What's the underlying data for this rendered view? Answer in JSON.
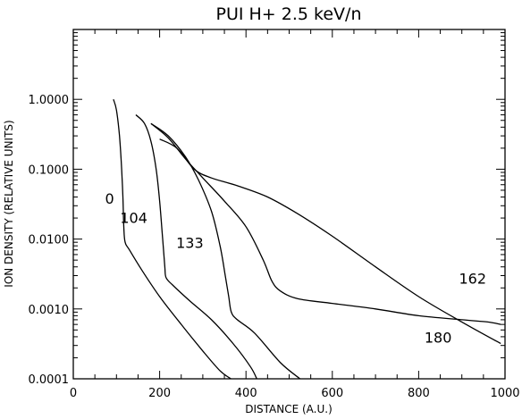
{
  "chart_data": {
    "type": "line",
    "title": "PUI H+ 2.5 keV/n",
    "xlabel": "DISTANCE (A.U.)",
    "ylabel": "ION DENSITY (RELATIVE UNITS)",
    "xlim": [
      0,
      1000
    ],
    "ylim": [
      0.0001,
      10
    ],
    "yscale": "log",
    "xticks": [
      0,
      200,
      400,
      600,
      800,
      1000
    ],
    "xtick_labels": [
      "0",
      "200",
      "400",
      "600",
      "800",
      "1000"
    ],
    "yticks": [
      0.0001,
      0.001,
      0.01,
      0.1,
      1.0
    ],
    "ytick_labels": [
      "0.0001",
      "0.0010",
      "0.0100",
      "0.1000",
      "1.0000"
    ],
    "series": [
      {
        "name": "0",
        "x": [
          93,
          100,
          107,
          112,
          115,
          117,
          120,
          130,
          160,
          200,
          250,
          300,
          340,
          365
        ],
        "y": [
          1.0,
          0.7,
          0.3,
          0.1,
          0.04,
          0.015,
          0.009,
          0.007,
          0.0035,
          0.0015,
          0.0006,
          0.00025,
          0.00013,
          0.0001
        ]
      },
      {
        "name": "104",
        "x": [
          145,
          165,
          180,
          192,
          200,
          207,
          212,
          215,
          230,
          270,
          320,
          370,
          410,
          425
        ],
        "y": [
          0.6,
          0.45,
          0.25,
          0.1,
          0.035,
          0.01,
          0.004,
          0.0028,
          0.0022,
          0.0013,
          0.0007,
          0.00032,
          0.00015,
          0.0001
        ]
      },
      {
        "name": "133",
        "x": [
          180,
          220,
          260,
          290,
          320,
          340,
          352,
          360,
          366,
          380,
          420,
          480,
          525
        ],
        "y": [
          0.45,
          0.3,
          0.15,
          0.07,
          0.025,
          0.008,
          0.003,
          0.0015,
          0.0009,
          0.0007,
          0.00045,
          0.00017,
          0.0001
        ]
      },
      {
        "name": "162",
        "x": [
          200,
          240,
          280,
          320,
          380,
          450,
          520,
          600,
          700,
          800,
          900,
          990
        ],
        "y": [
          0.27,
          0.2,
          0.1,
          0.075,
          0.058,
          0.04,
          0.023,
          0.011,
          0.004,
          0.0015,
          0.00065,
          0.00032
        ]
      },
      {
        "name": "180",
        "x": [
          180,
          220,
          260,
          300,
          350,
          400,
          440,
          460,
          480,
          520,
          600,
          700,
          800,
          900,
          960,
          990
        ],
        "y": [
          0.45,
          0.28,
          0.14,
          0.075,
          0.035,
          0.015,
          0.005,
          0.0025,
          0.0018,
          0.0014,
          0.0012,
          0.001,
          0.0008,
          0.0007,
          0.00065,
          0.0006
        ]
      }
    ]
  }
}
